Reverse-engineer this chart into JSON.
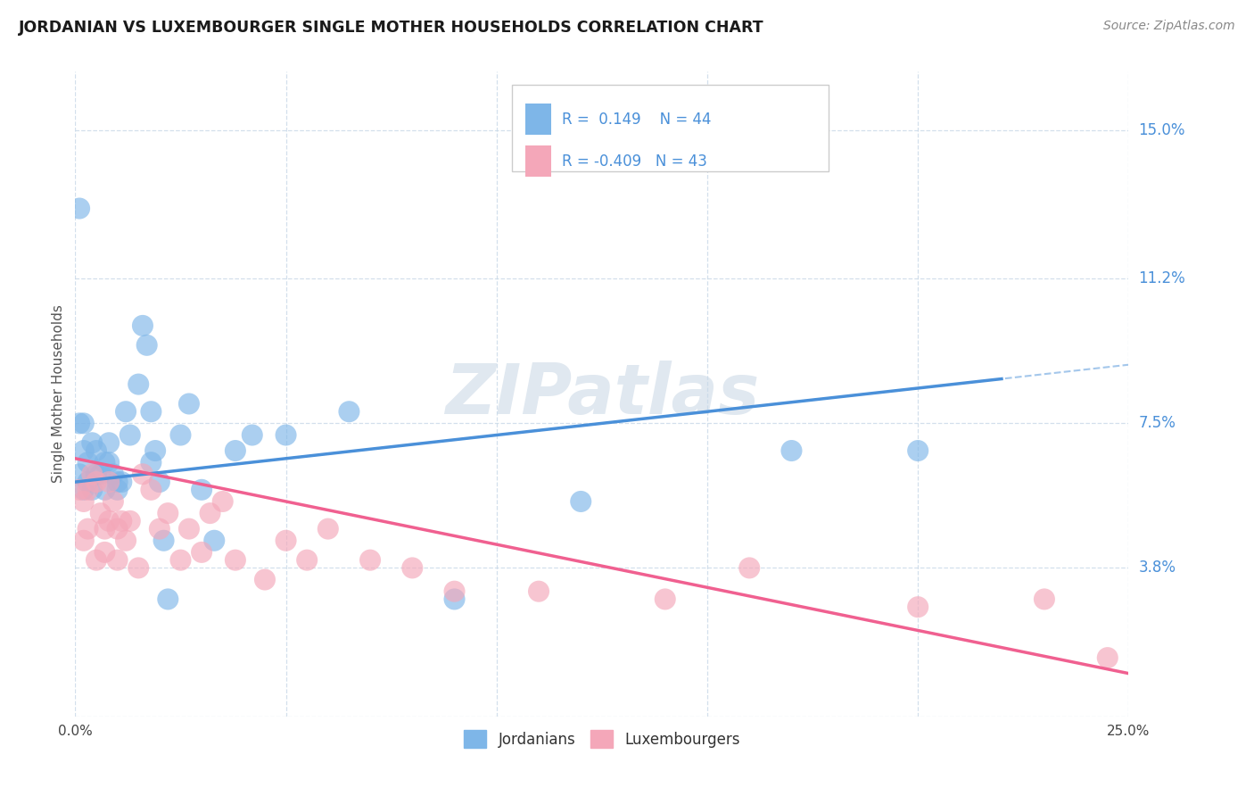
{
  "title": "JORDANIAN VS LUXEMBOURGER SINGLE MOTHER HOUSEHOLDS CORRELATION CHART",
  "source": "Source: ZipAtlas.com",
  "ylabel": "Single Mother Households",
  "xlim": [
    0.0,
    0.25
  ],
  "ylim": [
    0.0,
    0.165
  ],
  "yticks": [
    0.0,
    0.038,
    0.075,
    0.112,
    0.15
  ],
  "ytick_labels": [
    "",
    "3.8%",
    "7.5%",
    "11.2%",
    "15.0%"
  ],
  "xticks": [
    0.0,
    0.05,
    0.1,
    0.15,
    0.2,
    0.25
  ],
  "xtick_labels": [
    "0.0%",
    "",
    "",
    "",
    "",
    "25.0%"
  ],
  "watermark": "ZIPatlas",
  "legend_labels": [
    "Jordanians",
    "Luxembourgers"
  ],
  "blue_color": "#7EB6E8",
  "pink_color": "#F4A7B9",
  "blue_line_color": "#4A90D9",
  "pink_line_color": "#F06090",
  "R_blue": 0.149,
  "N_blue": 44,
  "R_pink": -0.409,
  "N_pink": 43,
  "blue_intercept": 0.06,
  "blue_slope": 0.12,
  "pink_intercept": 0.066,
  "pink_slope": -0.22,
  "blue_dots_x": [
    0.001,
    0.001,
    0.001,
    0.002,
    0.002,
    0.002,
    0.003,
    0.003,
    0.004,
    0.004,
    0.005,
    0.005,
    0.006,
    0.007,
    0.007,
    0.008,
    0.008,
    0.009,
    0.01,
    0.01,
    0.011,
    0.012,
    0.013,
    0.015,
    0.016,
    0.017,
    0.018,
    0.018,
    0.019,
    0.02,
    0.021,
    0.022,
    0.025,
    0.027,
    0.03,
    0.033,
    0.038,
    0.042,
    0.05,
    0.065,
    0.09,
    0.12,
    0.17,
    0.2
  ],
  "blue_dots_y": [
    0.13,
    0.075,
    0.062,
    0.075,
    0.068,
    0.058,
    0.065,
    0.06,
    0.058,
    0.07,
    0.062,
    0.068,
    0.062,
    0.065,
    0.058,
    0.07,
    0.065,
    0.062,
    0.06,
    0.058,
    0.06,
    0.078,
    0.072,
    0.085,
    0.1,
    0.095,
    0.078,
    0.065,
    0.068,
    0.06,
    0.045,
    0.03,
    0.072,
    0.08,
    0.058,
    0.045,
    0.068,
    0.072,
    0.072,
    0.078,
    0.03,
    0.055,
    0.068,
    0.068
  ],
  "pink_dots_x": [
    0.001,
    0.002,
    0.002,
    0.003,
    0.003,
    0.004,
    0.005,
    0.005,
    0.006,
    0.007,
    0.007,
    0.008,
    0.008,
    0.009,
    0.01,
    0.01,
    0.011,
    0.012,
    0.013,
    0.015,
    0.016,
    0.018,
    0.02,
    0.022,
    0.025,
    0.027,
    0.03,
    0.032,
    0.035,
    0.038,
    0.045,
    0.05,
    0.055,
    0.06,
    0.07,
    0.08,
    0.09,
    0.11,
    0.14,
    0.16,
    0.2,
    0.23,
    0.245
  ],
  "pink_dots_y": [
    0.058,
    0.055,
    0.045,
    0.058,
    0.048,
    0.062,
    0.06,
    0.04,
    0.052,
    0.048,
    0.042,
    0.06,
    0.05,
    0.055,
    0.048,
    0.04,
    0.05,
    0.045,
    0.05,
    0.038,
    0.062,
    0.058,
    0.048,
    0.052,
    0.04,
    0.048,
    0.042,
    0.052,
    0.055,
    0.04,
    0.035,
    0.045,
    0.04,
    0.048,
    0.04,
    0.038,
    0.032,
    0.032,
    0.03,
    0.038,
    0.028,
    0.03,
    0.015
  ]
}
